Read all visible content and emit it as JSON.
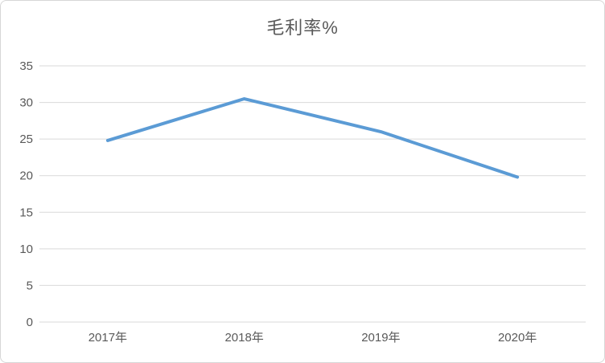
{
  "chart_data": {
    "type": "line",
    "title": "毛利率%",
    "categories": [
      "2017年",
      "2018年",
      "2019年",
      "2020年"
    ],
    "series": [
      {
        "name": "毛利率%",
        "values": [
          24.8,
          30.5,
          26.0,
          19.8
        ],
        "color": "#5b9bd5"
      }
    ],
    "xlabel": "",
    "ylabel": "",
    "ylim": [
      0,
      35
    ],
    "yticks": [
      0,
      5,
      10,
      15,
      20,
      25,
      30,
      35
    ],
    "grid": "horizontal",
    "legend": "none",
    "colors": {
      "gridline": "#d9d9d9",
      "text": "#595959",
      "background": "#ffffff",
      "border": "#d6d6d6"
    }
  }
}
